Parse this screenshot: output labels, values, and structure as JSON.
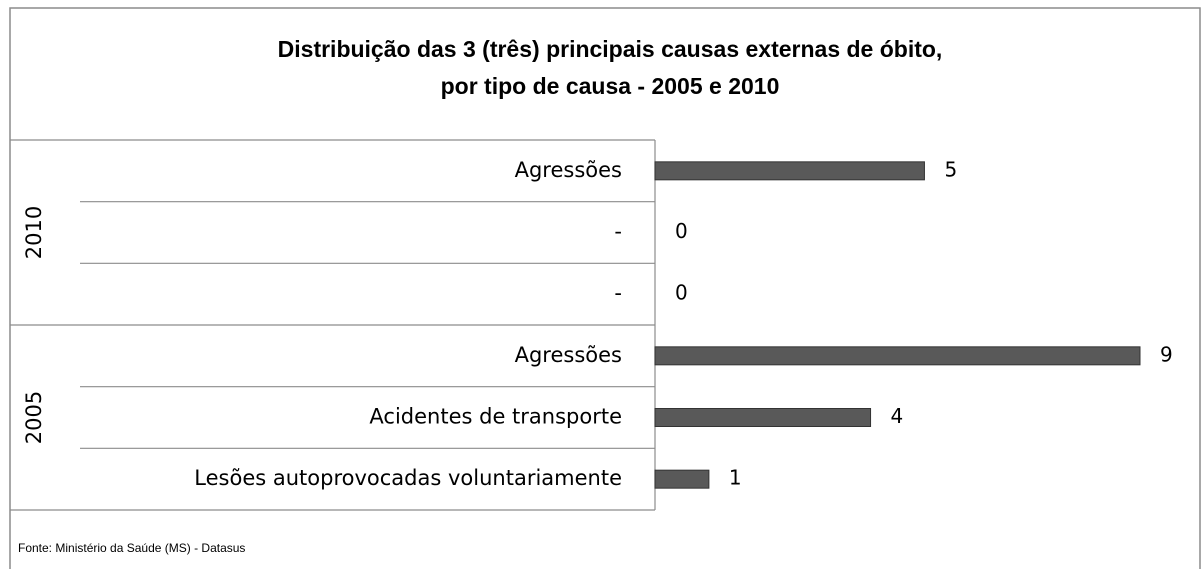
{
  "chart_data": {
    "type": "bar",
    "title": [
      "Distribuição  das 3 (três) principais causas externas de óbito,",
      "por tipo de causa - 2005 e 2010"
    ],
    "color": "#595959",
    "groups": [
      {
        "name": "2010",
        "categories": [
          "Agressões",
          "-",
          "-"
        ],
        "values": [
          5,
          0,
          0
        ]
      },
      {
        "name": "2005",
        "categories": [
          "Agressões",
          "Acidentes de transporte",
          "Lesões autoprovocadas voluntariamente"
        ],
        "values": [
          9,
          4,
          1
        ]
      }
    ],
    "source": "Fonte: Ministério da Saúde (MS) - Datasus"
  }
}
